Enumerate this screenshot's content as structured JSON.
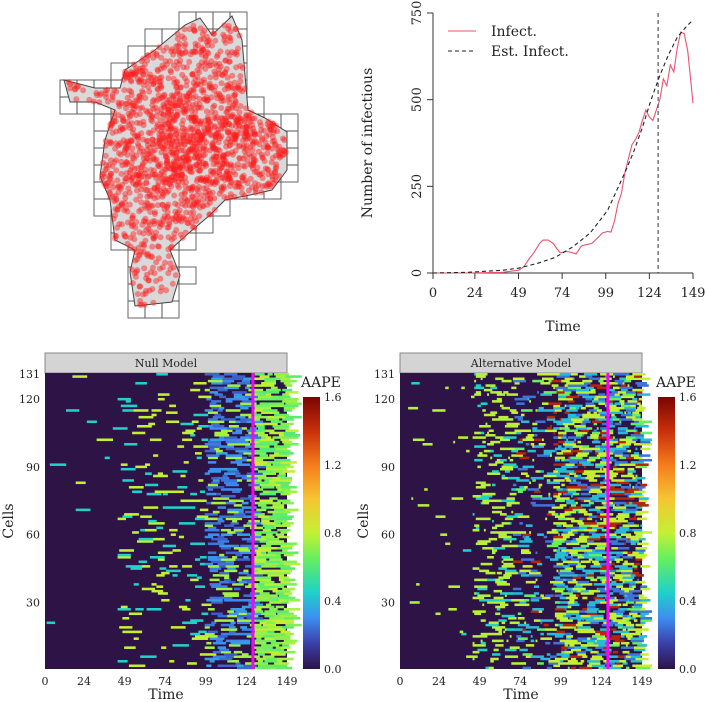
{
  "chart_data": [
    {
      "type": "map",
      "title": "",
      "description_labels": []
    },
    {
      "type": "line",
      "xlabel": "Time",
      "ylabel": "Number of infectious",
      "xticks": [
        0,
        24,
        49,
        74,
        99,
        124,
        149
      ],
      "yticks": [
        0,
        250,
        500,
        750
      ],
      "xlim": [
        0,
        149
      ],
      "ylim": [
        0,
        750
      ],
      "vline": 129,
      "legend": {
        "position": "top-left",
        "entries": [
          "Infect.",
          "Est. Infect."
        ]
      },
      "series": [
        {
          "name": "Infect.",
          "color": "#e8536f",
          "style": "solid",
          "x": [
            0,
            20,
            40,
            49,
            52,
            55,
            58,
            61,
            63,
            66,
            69,
            71,
            73,
            76,
            79,
            82,
            85,
            88,
            91,
            94,
            97,
            100,
            102,
            104,
            106,
            108,
            110,
            112,
            114,
            116,
            118,
            120,
            122,
            124,
            126,
            128,
            130,
            132,
            134,
            136,
            138,
            140,
            142,
            144,
            146,
            149
          ],
          "y": [
            0,
            0,
            2,
            8,
            18,
            40,
            60,
            85,
            95,
            95,
            85,
            70,
            58,
            62,
            60,
            55,
            78,
            82,
            85,
            100,
            115,
            120,
            118,
            150,
            200,
            230,
            290,
            330,
            370,
            385,
            405,
            440,
            470,
            450,
            440,
            470,
            500,
            560,
            540,
            600,
            580,
            650,
            695,
            690,
            640,
            490
          ]
        },
        {
          "name": "Est. Infect.",
          "color": "#222222",
          "style": "dashed",
          "x": [
            0,
            20,
            40,
            49,
            60,
            70,
            80,
            90,
            100,
            110,
            115,
            120,
            125,
            130,
            135,
            140,
            145,
            149
          ],
          "y": [
            0,
            2,
            8,
            14,
            28,
            45,
            75,
            115,
            180,
            290,
            350,
            420,
            500,
            570,
            630,
            680,
            710,
            730
          ]
        }
      ]
    },
    {
      "type": "heatmap",
      "panel_title": "Null Model",
      "xlabel": "Time",
      "ylabel": "Cells",
      "xticks": [
        0,
        24,
        49,
        74,
        99,
        124,
        149
      ],
      "yticks": [
        30,
        60,
        90,
        120,
        131
      ],
      "xlim": [
        0,
        149
      ],
      "ylim": [
        1,
        131
      ],
      "vline": 128,
      "colorbar": {
        "title": "AAPE",
        "ticks": [
          "0.0",
          "0.4",
          "0.8",
          "1.2",
          "1.6"
        ],
        "range": [
          0,
          1.6
        ]
      },
      "cells_note": "values generated procedurally (sparse early, blue 99-127, green after 128)"
    },
    {
      "type": "heatmap",
      "panel_title": "Alternative Model",
      "xlabel": "Time",
      "ylabel": "Cells",
      "xticks": [
        0,
        24,
        49,
        74,
        99,
        124,
        149
      ],
      "yticks": [
        30,
        60,
        90,
        120,
        131
      ],
      "xlim": [
        0,
        149
      ],
      "ylim": [
        1,
        131
      ],
      "vline": 128,
      "colorbar": {
        "title": "AAPE",
        "ticks": [
          "0.0",
          "0.4",
          "0.8",
          "1.2",
          "1.6"
        ],
        "range": [
          0,
          1.6
        ]
      },
      "cells_note": "values generated procedurally (dense mixed errors from ~49 onward)"
    }
  ],
  "colors": {
    "infect": "#e8536f",
    "vline": "#ff00ff",
    "background_cell": "#2d1346",
    "dot": "#ff1a1a"
  }
}
